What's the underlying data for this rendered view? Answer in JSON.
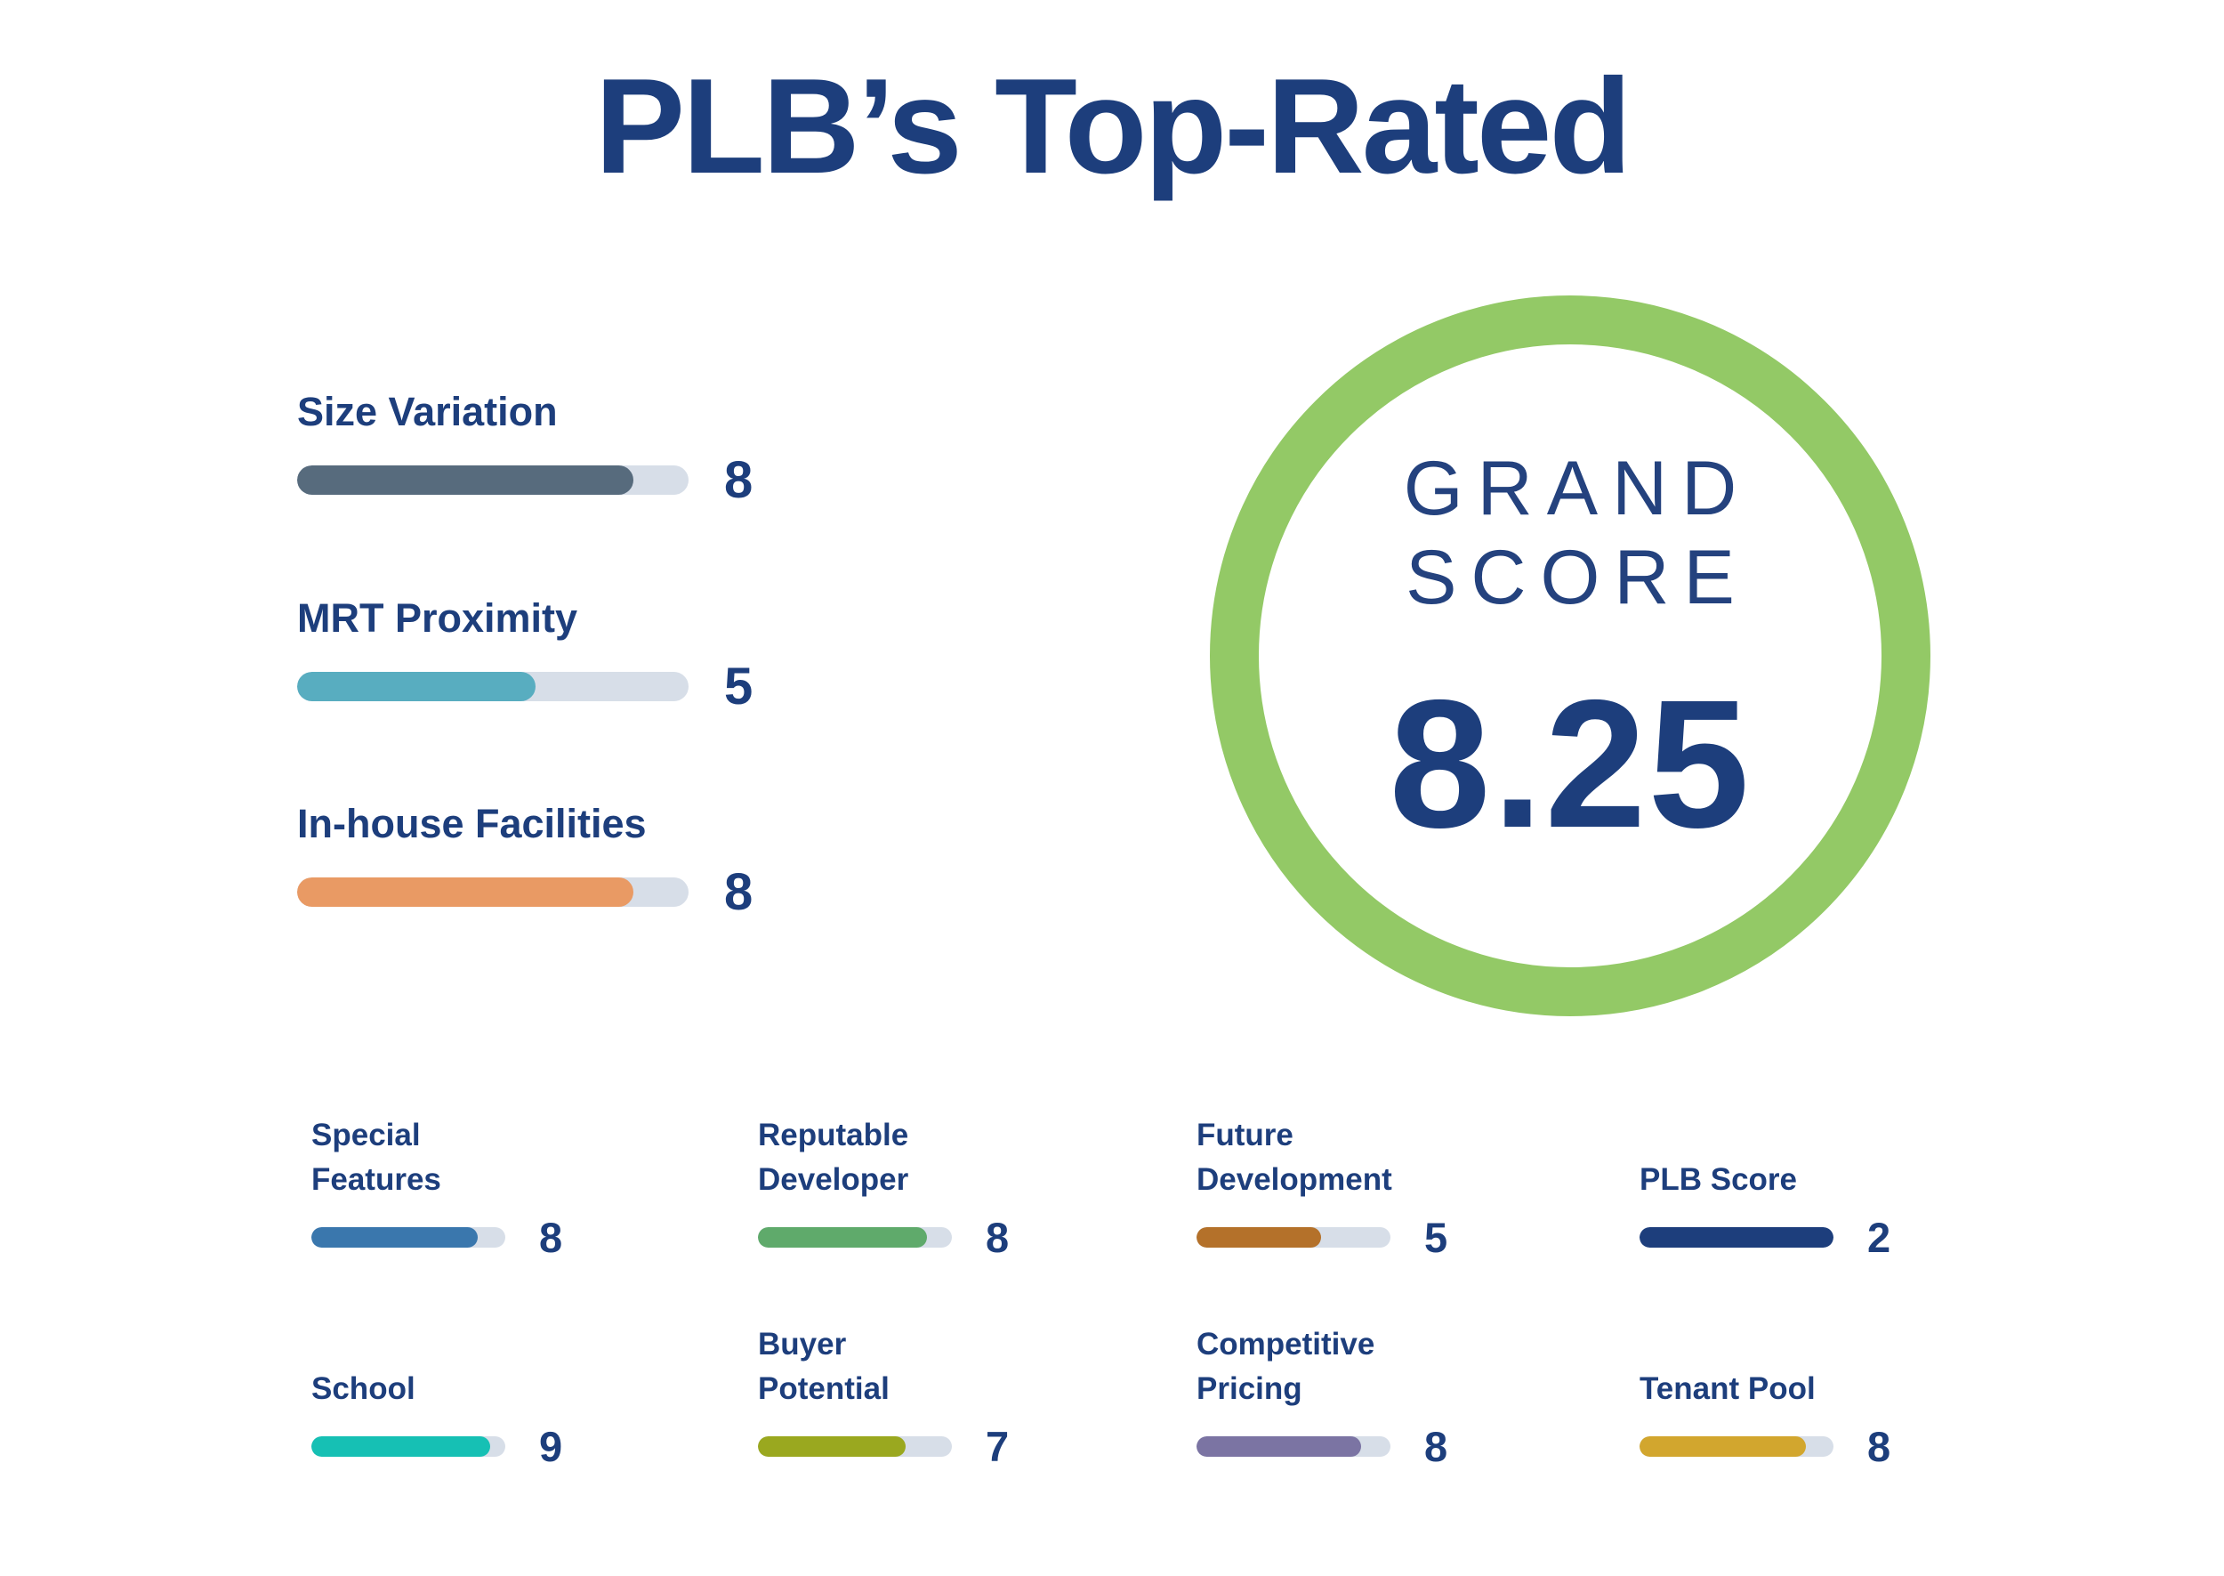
{
  "title": "PLB’s Top-Rated",
  "grand_score": {
    "label": "GRAND\nSCORE",
    "value": "8.25"
  },
  "colors": {
    "navy_text": "#1d3e7c",
    "ring_green": "#93c966",
    "bar_track": "#d7dee8"
  },
  "metrics": {
    "top": [
      {
        "label": "Size Variation",
        "value": "8",
        "color": "#576b7d",
        "fill_pct": 86
      },
      {
        "label": "MRT Proximity",
        "value": "5",
        "color": "#58adc0",
        "fill_pct": 61
      },
      {
        "label": "In-house Facilities",
        "value": "8",
        "color": "#e99a64",
        "fill_pct": 86
      }
    ],
    "grid": [
      {
        "label": "Special\nFeatures",
        "value": "8",
        "color": "#3a77ad",
        "fill_pct": 86
      },
      {
        "label": "Reputable\nDeveloper",
        "value": "8",
        "color": "#5faa6b",
        "fill_pct": 87
      },
      {
        "label": "Future\nDevelopment",
        "value": "5",
        "color": "#b4712a",
        "fill_pct": 64
      },
      {
        "label": "PLB Score",
        "value": "2",
        "color": "#1d3e7c",
        "fill_pct": 100
      },
      {
        "label": "School",
        "value": "9",
        "color": "#16c0b4",
        "fill_pct": 92
      },
      {
        "label": "Buyer\nPotential",
        "value": "7",
        "color": "#9aa81f",
        "fill_pct": 76
      },
      {
        "label": "Competitive\nPricing",
        "value": "8",
        "color": "#7b74a3",
        "fill_pct": 85
      },
      {
        "label": "Tenant Pool",
        "value": "8",
        "color": "#d2a62e",
        "fill_pct": 86
      }
    ]
  },
  "chart_data": {
    "type": "bar",
    "title": "PLB’s Top-Rated",
    "orientation": "horizontal",
    "categories": [
      "Size Variation",
      "MRT Proximity",
      "In-house Facilities",
      "Special Features",
      "Reputable Developer",
      "Future Development",
      "PLB Score",
      "School",
      "Buyer Potential",
      "Competitive Pricing",
      "Tenant Pool"
    ],
    "values": [
      8,
      5,
      8,
      8,
      8,
      5,
      2,
      9,
      7,
      8,
      8
    ],
    "xlim": [
      0,
      10
    ],
    "grand_score": 8.25,
    "grid": false,
    "legend": "none",
    "bar_colors": [
      "#576b7d",
      "#58adc0",
      "#e99a64",
      "#3a77ad",
      "#5faa6b",
      "#b4712a",
      "#1d3e7c",
      "#16c0b4",
      "#9aa81f",
      "#7b74a3",
      "#d2a62e"
    ]
  }
}
